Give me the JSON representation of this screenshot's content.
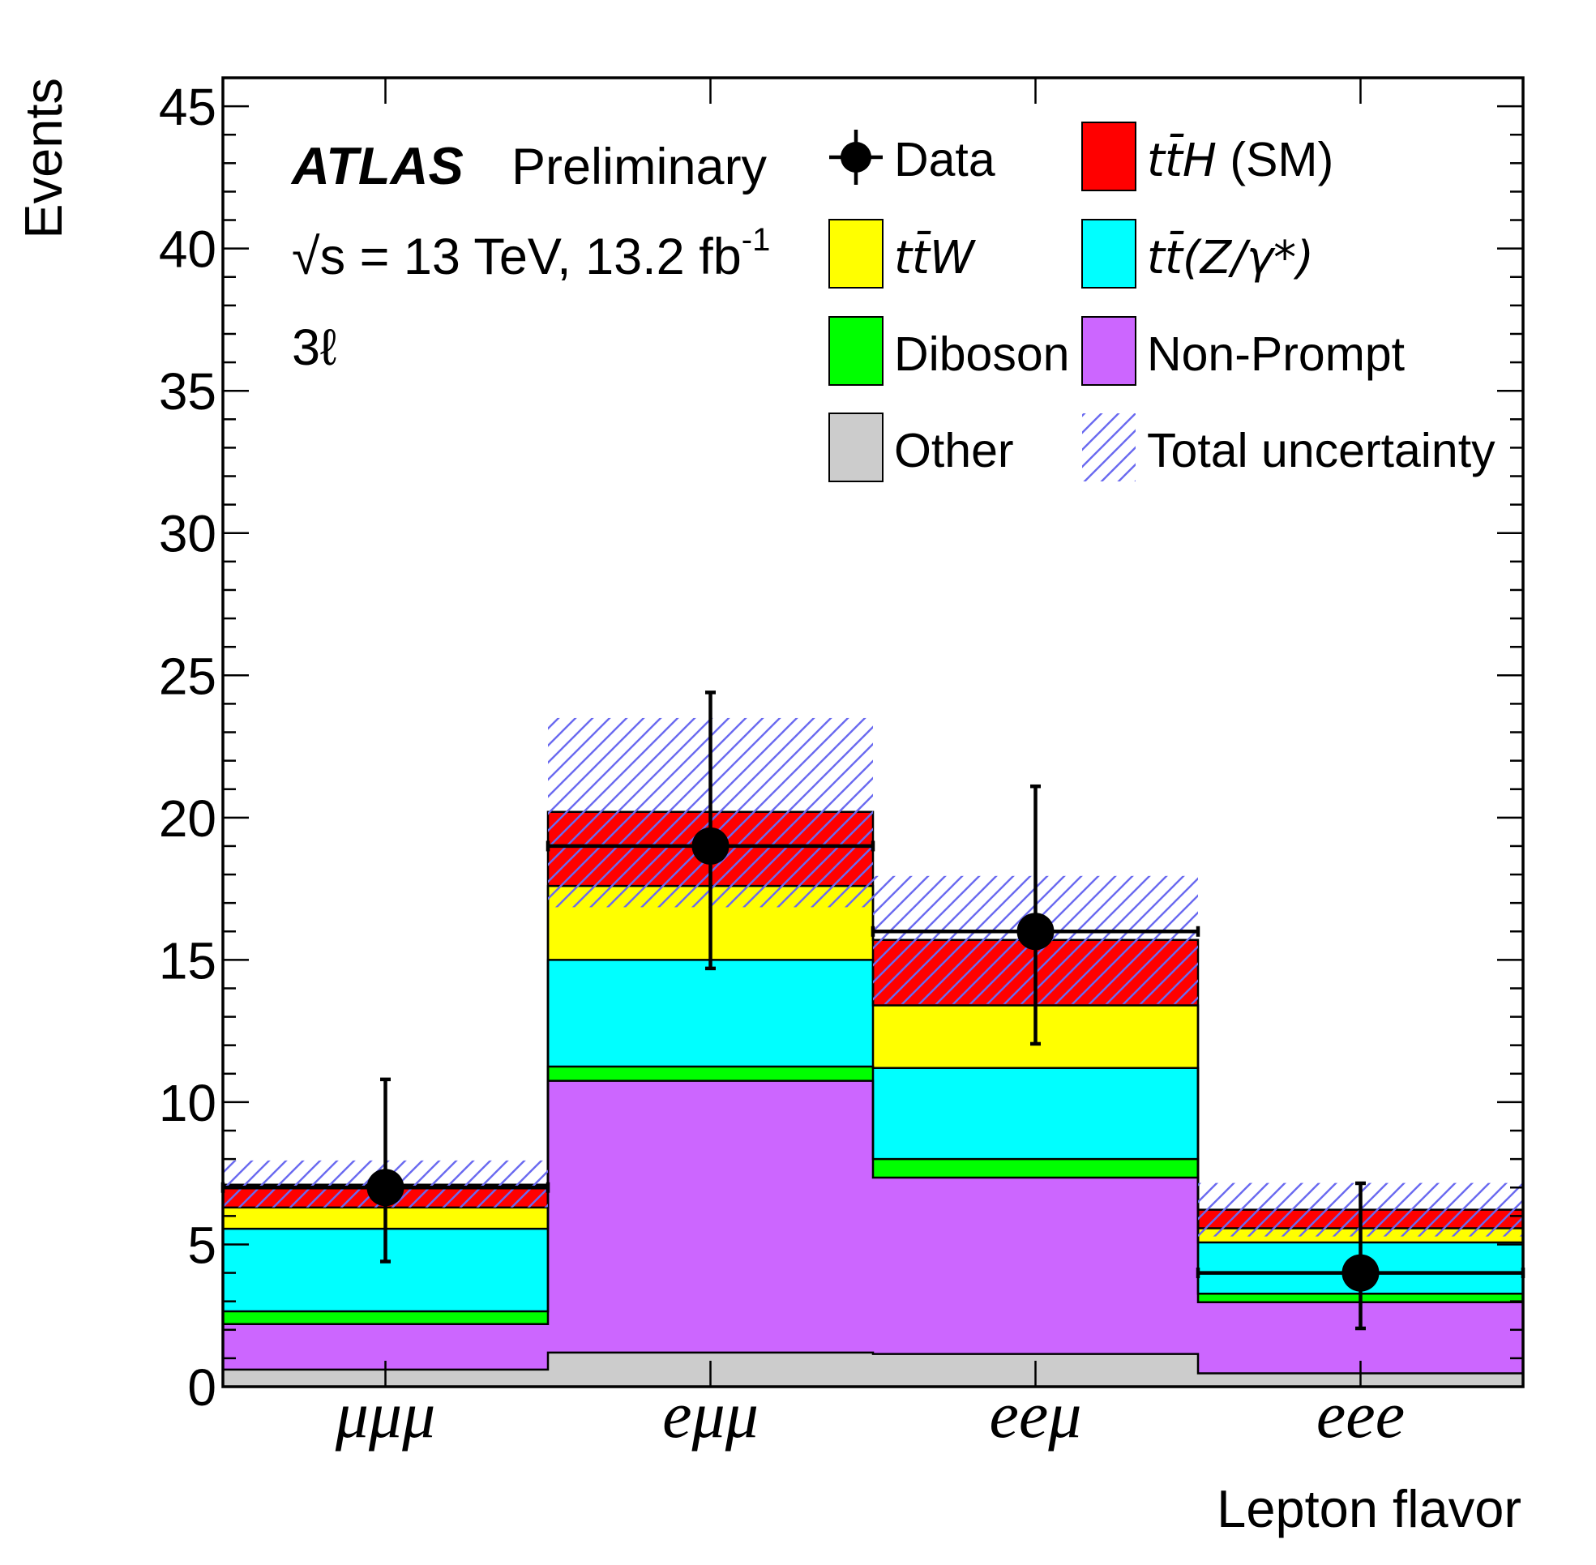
{
  "chart_data": {
    "type": "bar",
    "stacked": true,
    "title": "",
    "categories": [
      "μμμ",
      "eμμ",
      "eeμ",
      "eee"
    ],
    "xlabel": "Lepton flavor",
    "ylabel": "Events",
    "ylim": [
      0,
      46
    ],
    "yticks": [
      0,
      5,
      10,
      15,
      20,
      25,
      30,
      35,
      40,
      45
    ],
    "series": [
      {
        "label": "Other",
        "suffix": "",
        "math": false,
        "color": "#cccccc",
        "values": [
          0.6,
          1.2,
          1.15,
          0.47
        ]
      },
      {
        "label": "Non-Prompt",
        "suffix": "",
        "math": false,
        "color": "#cc66ff",
        "values": [
          1.6,
          9.55,
          6.2,
          2.5
        ]
      },
      {
        "label": "Diboson",
        "suffix": "",
        "math": false,
        "color": "#00ff00",
        "values": [
          0.45,
          0.5,
          0.65,
          0.3
        ]
      },
      {
        "label": "tt̄(Z/γ*)",
        "suffix": "",
        "math": true,
        "color": "#00ffff",
        "values": [
          2.9,
          3.75,
          3.2,
          1.8
        ]
      },
      {
        "label": "tt̄W",
        "suffix": "",
        "math": true,
        "color": "#ffff00",
        "values": [
          0.75,
          2.6,
          2.2,
          0.5
        ]
      },
      {
        "label": "tt̄H",
        "suffix": " (SM)",
        "math": true,
        "color": "#ff0000",
        "values": [
          0.8,
          2.6,
          2.3,
          0.65
        ]
      }
    ],
    "uncertainty": {
      "label": "Total uncertainty",
      "color": "#6a6af0",
      "low": [
        6.3,
        16.85,
        13.45,
        5.28
      ],
      "high": [
        7.95,
        23.5,
        17.95,
        7.16
      ]
    },
    "data": {
      "label": "Data",
      "values": [
        7,
        19,
        16,
        4
      ],
      "err_low": [
        4.4,
        14.7,
        12.05,
        2.05
      ],
      "err_high": [
        10.8,
        24.4,
        21.1,
        7.15
      ]
    }
  },
  "annotations": {
    "experiment": "ATLAS",
    "status": "Preliminary",
    "energy_lumi": "√s = 13 TeV, 13.2 fb",
    "lumi_unit_exponent": "-1",
    "channel": "3ℓ"
  }
}
